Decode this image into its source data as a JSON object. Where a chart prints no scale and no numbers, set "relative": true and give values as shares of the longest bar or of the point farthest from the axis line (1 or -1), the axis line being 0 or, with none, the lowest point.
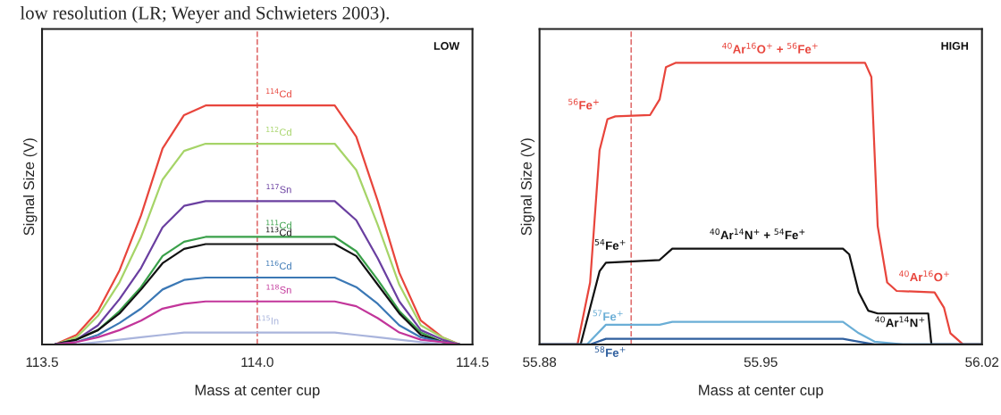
{
  "chart_data": [
    {
      "type": "line",
      "title": "low resolution (LR; Weyer and Schwieters 2003).",
      "xlabel": "Mass at center cup",
      "ylabel": "Signal Size (V)",
      "relative": true,
      "tick_labels": "x",
      "grid": false,
      "legend": false,
      "xlim": [
        113.5,
        114.5
      ],
      "xticks": [
        {
          "value": 113.5,
          "label": "113.5"
        },
        {
          "value": 114.0,
          "label": "114.0"
        },
        {
          "value": 114.5,
          "label": "114.5"
        }
      ],
      "x": [
        113.53,
        113.58,
        113.63,
        113.68,
        113.73,
        113.78,
        113.83,
        113.88,
        114.18,
        114.23,
        114.28,
        114.33,
        114.38,
        114.43,
        114.47
      ],
      "ref_lines": [
        {
          "axis": "x",
          "value": 114.0,
          "color": "#e07070",
          "line_style": "dashed"
        }
      ],
      "annotations": [
        "LOW"
      ],
      "series": [
        {
          "name": "$^{114}$Cd",
          "color": "#e8453c",
          "values": [
            0,
            0.04,
            0.14,
            0.31,
            0.54,
            0.82,
            0.96,
            1,
            1,
            0.87,
            0.6,
            0.3,
            0.1,
            0.03,
            0
          ]
        },
        {
          "name": "$^{112}$Cd",
          "color": "#a6d468",
          "values": [
            0,
            0.03,
            0.12,
            0.26,
            0.45,
            0.69,
            0.81,
            0.84,
            0.84,
            0.73,
            0.5,
            0.25,
            0.08,
            0.03,
            0
          ]
        },
        {
          "name": "$^{117}$Sn",
          "color": "#6a3fa0",
          "values": [
            0,
            0.02,
            0.08,
            0.19,
            0.32,
            0.49,
            0.58,
            0.6,
            0.6,
            0.52,
            0.36,
            0.18,
            0.06,
            0.02,
            0
          ]
        },
        {
          "name": "$^{111}$Cd",
          "color": "#3aa04a",
          "values": [
            0,
            0.02,
            0.06,
            0.14,
            0.24,
            0.37,
            0.43,
            0.45,
            0.45,
            0.39,
            0.27,
            0.14,
            0.05,
            0.01,
            0
          ]
        },
        {
          "name": "$^{113}$Cd",
          "color": "#111111",
          "values": [
            0,
            0.02,
            0.06,
            0.13,
            0.23,
            0.34,
            0.4,
            0.42,
            0.42,
            0.37,
            0.25,
            0.13,
            0.04,
            0.01,
            0
          ]
        },
        {
          "name": "$^{116}$Cd",
          "color": "#3b78b5",
          "values": [
            0,
            0.01,
            0.04,
            0.09,
            0.15,
            0.23,
            0.27,
            0.28,
            0.28,
            0.24,
            0.17,
            0.08,
            0.03,
            0.01,
            0
          ]
        },
        {
          "name": "$^{118}$Sn",
          "color": "#c2359a",
          "values": [
            0,
            0.01,
            0.03,
            0.06,
            0.1,
            0.15,
            0.17,
            0.18,
            0.18,
            0.16,
            0.11,
            0.05,
            0.02,
            0.01,
            0
          ]
        },
        {
          "name": "$^{115}$In",
          "color": "#a9b4dc",
          "values": [
            null,
            0,
            0.01,
            0.02,
            0.03,
            0.04,
            0.05,
            0.05,
            0.05,
            0.04,
            0.03,
            0.02,
            0.01,
            0,
            null
          ]
        }
      ]
    },
    {
      "type": "line",
      "xlabel": "Mass at center cup",
      "ylabel": "Signal Size (V)",
      "relative": true,
      "tick_labels": "x",
      "grid": false,
      "legend": false,
      "xlim": [
        55.88,
        56.02
      ],
      "xticks": [
        55.88,
        55.95,
        56.02
      ],
      "ref_lines": [
        {
          "axis": "x",
          "value": 55.909,
          "color": "#e07070",
          "line_style": "dashed"
        }
      ],
      "annotations": [
        "HIGH",
        "$^{56}$Fe$^{+}$",
        "$^{40}$Ar$^{16}$O$^{+}$",
        "$^{54}$Fe$^{+}$",
        "$^{40}$Ar$^{14}$N$^{+}$",
        "$^{57}$Fe$^{+}$",
        "$^{58}$Fe$^{+}$"
      ],
      "series": [
        {
          "name": "$^{40}$Ar$^{16}$O$^{+}$ + $^{56}$Fe$^{+}$",
          "color": "#e8453c",
          "x": [
            55.88,
            55.892,
            55.896,
            55.899,
            55.9015,
            55.904,
            55.915,
            55.918,
            55.92,
            55.923,
            55.983,
            55.985,
            55.987,
            55.99,
            55.993,
            56.005,
            56.008,
            56.01,
            56.014,
            56.02
          ],
          "values": [
            0,
            0,
            0.22,
            0.69,
            0.8,
            0.81,
            0.815,
            0.87,
            0.985,
            1,
            1,
            0.95,
            0.42,
            0.22,
            0.19,
            0.185,
            0.13,
            0.04,
            0,
            0
          ]
        },
        {
          "name": "$^{40}$Ar$^{14}$N$^{+}$ + $^{54}$Fe$^{+}$",
          "color": "#111111",
          "x": [
            55.88,
            55.893,
            55.899,
            55.901,
            55.918,
            55.922,
            55.924,
            55.976,
            55.978,
            55.981,
            55.984,
            55.987,
            56.003,
            56.004,
            56.02
          ],
          "values": [
            0,
            0,
            0.26,
            0.29,
            0.3,
            0.34,
            0.34,
            0.34,
            0.32,
            0.185,
            0.12,
            0.11,
            0.11,
            0,
            0
          ]
        },
        {
          "color": "#6aaed6",
          "x": [
            55.88,
            55.895,
            55.901,
            55.918,
            55.922,
            55.976,
            55.981,
            55.986,
            55.995,
            56.02
          ],
          "values": [
            0,
            0,
            0.07,
            0.07,
            0.08,
            0.08,
            0.04,
            0.01,
            0,
            0
          ]
        },
        {
          "color": "#2f5f9e",
          "x": [
            55.88,
            55.896,
            55.901,
            55.922,
            55.976,
            55.981,
            55.986,
            56.02
          ],
          "values": [
            0,
            0,
            0.02,
            0.02,
            0.02,
            0.01,
            0,
            0
          ]
        }
      ]
    }
  ]
}
